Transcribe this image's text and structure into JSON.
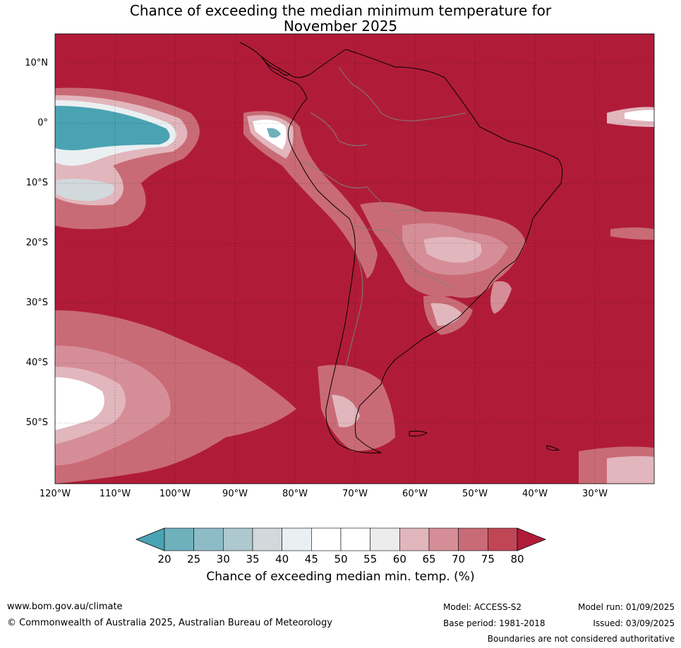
{
  "title_line1": "Chance of exceeding the median minimum temperature for",
  "title_line2": "November 2025",
  "lat_labels": [
    "10°N",
    "0°",
    "10°S",
    "20°S",
    "30°S",
    "40°S",
    "50°S"
  ],
  "lon_labels": [
    "120°W",
    "110°W",
    "100°W",
    "90°W",
    "80°W",
    "70°W",
    "60°W",
    "50°W",
    "40°W",
    "30°W"
  ],
  "colorbar": {
    "ticks": [
      "20",
      "25",
      "30",
      "35",
      "40",
      "45",
      "50",
      "55",
      "60",
      "65",
      "70",
      "75",
      "80"
    ],
    "colors": [
      "#4aa3b3",
      "#6fb0bd",
      "#8dbcc7",
      "#adc8cf",
      "#d1d9dc",
      "#eaf0f2",
      "#ffffff",
      "#ffffff",
      "#ececec",
      "#e2b6bd",
      "#d58e98",
      "#c96b76",
      "#c04656",
      "#b01c38"
    ],
    "label": "Chance of exceeding median min. temp. (%)"
  },
  "footer": {
    "url": "www.bom.gov.au/climate",
    "copyright": "© Commonwealth of Australia 2025, Australian Bureau of Meteorology",
    "model": "Model: ACCESS-S2",
    "base_period": "Base period: 1981-2018",
    "model_run": "Model run: 01/09/2025",
    "issued": "Issued: 03/09/2025",
    "disclaimer": "Boundaries are not considered authoritative"
  },
  "colors": {
    "above_80": "#b01c38",
    "teal": "#4aa3b3"
  }
}
